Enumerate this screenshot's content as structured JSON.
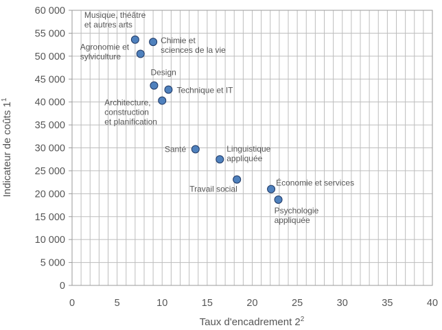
{
  "chart_data": {
    "type": "scatter",
    "title": "",
    "xlabel": "Taux d'encadrement 2",
    "xlabel_sup": "2",
    "ylabel": "Indicateur de coûts 1",
    "ylabel_sup": "1",
    "xlim": [
      0,
      40
    ],
    "ylim": [
      0,
      60000
    ],
    "x_ticks": [
      0,
      5,
      10,
      15,
      20,
      25,
      30,
      35,
      40
    ],
    "x_tick_labels": [
      "0",
      "5",
      "10",
      "15",
      "20",
      "25",
      "30",
      "35",
      "40"
    ],
    "y_ticks": [
      0,
      5000,
      10000,
      15000,
      20000,
      25000,
      30000,
      35000,
      40000,
      45000,
      50000,
      55000,
      60000
    ],
    "y_tick_labels": [
      "0",
      "5 000",
      "10 000",
      "15 000",
      "20 000",
      "25 000",
      "30 000",
      "35 000",
      "40 000",
      "45 000",
      "50 000",
      "55 000",
      "60 000"
    ],
    "grid": true,
    "marker_color": "#4f81bd",
    "points": [
      {
        "x": 7.0,
        "y": 53600,
        "label": [
          "Musique, théâtre",
          "et autres arts"
        ]
      },
      {
        "x": 9.0,
        "y": 53100,
        "label": [
          "Chimie et",
          "sciences de la vie"
        ]
      },
      {
        "x": 7.6,
        "y": 50500,
        "label": [
          "Agronomie et",
          "sylviculture"
        ]
      },
      {
        "x": 9.1,
        "y": 43600,
        "label": [
          "Design"
        ]
      },
      {
        "x": 10.7,
        "y": 42700,
        "label": [
          "Technique et IT"
        ]
      },
      {
        "x": 10.0,
        "y": 40300,
        "label": [
          "Architecture,",
          "construction",
          "et planification"
        ]
      },
      {
        "x": 13.7,
        "y": 29700,
        "label": [
          "Santé"
        ]
      },
      {
        "x": 16.4,
        "y": 27500,
        "label": [
          "Linguistique",
          "appliquée"
        ]
      },
      {
        "x": 18.3,
        "y": 23100,
        "label": [
          "Travail social"
        ]
      },
      {
        "x": 22.1,
        "y": 21000,
        "label": [
          "Économie et services"
        ]
      },
      {
        "x": 22.9,
        "y": 18700,
        "label": [
          "Psychologie",
          "appliquée"
        ]
      }
    ]
  }
}
